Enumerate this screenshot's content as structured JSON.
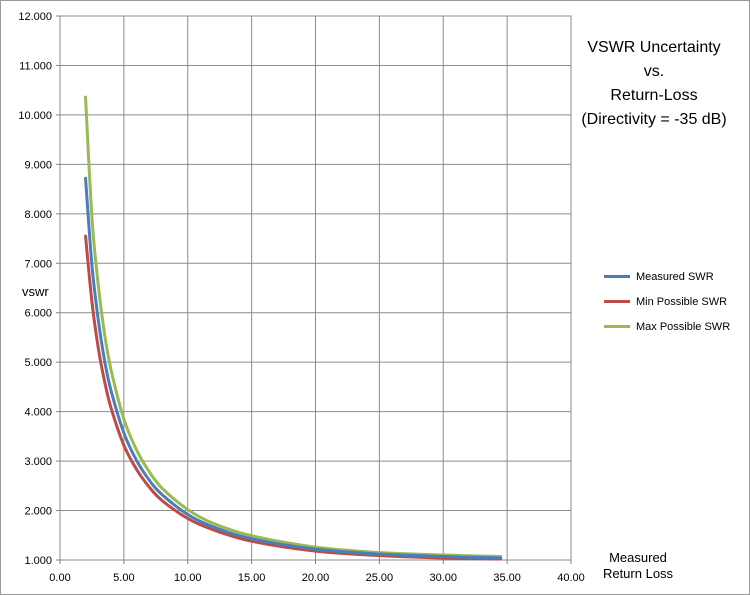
{
  "chart_data": {
    "type": "line",
    "title_lines": [
      "VSWR Uncertainty",
      "vs.",
      "Return-Loss",
      "(Directivity = -35 dB)"
    ],
    "xlabel_lines": [
      "Measured",
      "Return Loss"
    ],
    "ylabel": "vswr",
    "xlim": [
      0,
      40
    ],
    "ylim": [
      1,
      12
    ],
    "x_ticks": [
      "0.00",
      "5.00",
      "10.00",
      "15.00",
      "20.00",
      "25.00",
      "30.00",
      "35.00",
      "40.00"
    ],
    "y_ticks": [
      "1.000",
      "2.000",
      "3.000",
      "4.000",
      "5.000",
      "6.000",
      "7.000",
      "8.000",
      "9.000",
      "10.000",
      "11.000",
      "12.000"
    ],
    "grid": true,
    "legend_position": "right",
    "x": [
      2,
      2.5,
      3,
      3.5,
      4,
      5,
      6,
      7,
      8,
      10,
      12,
      15,
      20,
      25,
      30,
      34.5
    ],
    "series": [
      {
        "name": "Measured SWR",
        "color": "#4a7ebb",
        "values": [
          8.72,
          6.96,
          5.85,
          5.02,
          4.42,
          3.57,
          3.01,
          2.61,
          2.32,
          1.92,
          1.67,
          1.43,
          1.22,
          1.12,
          1.07,
          1.04
        ]
      },
      {
        "name": "Min Possible SWR",
        "color": "#be4b48",
        "values": [
          7.55,
          6.22,
          5.28,
          4.6,
          4.07,
          3.32,
          2.83,
          2.47,
          2.2,
          1.84,
          1.61,
          1.38,
          1.18,
          1.09,
          1.04,
          1.02
        ]
      },
      {
        "name": "Max Possible SWR",
        "color": "#98b954",
        "values": [
          10.36,
          7.92,
          6.55,
          5.55,
          4.84,
          3.85,
          3.22,
          2.78,
          2.45,
          2.02,
          1.74,
          1.49,
          1.26,
          1.15,
          1.1,
          1.07
        ]
      }
    ]
  }
}
